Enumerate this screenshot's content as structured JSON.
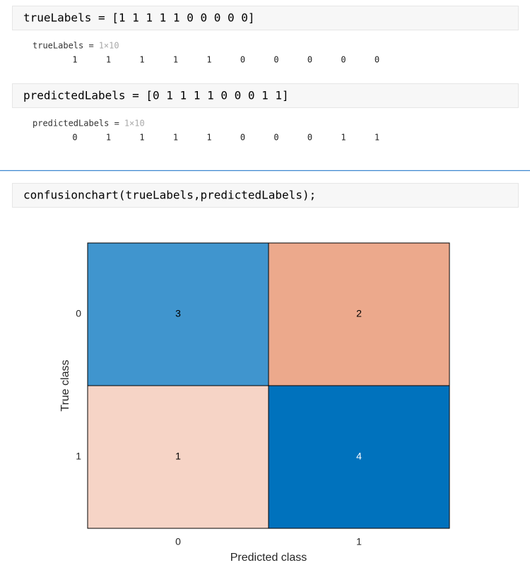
{
  "cells": [
    {
      "code": "trueLabels = [1 1 1 1 1 0 0 0 0 0]",
      "output_name": "trueLabels =",
      "output_size": "1×10",
      "output_values": [
        1,
        1,
        1,
        1,
        1,
        0,
        0,
        0,
        0,
        0
      ]
    },
    {
      "code": "predictedLabels = [0 1 1 1 1 0 0 0 1 1]",
      "output_name": "predictedLabels =",
      "output_size": "1×10",
      "output_values": [
        0,
        1,
        1,
        1,
        1,
        0,
        0,
        0,
        1,
        1
      ]
    },
    {
      "code": "confusionchart(trueLabels,predictedLabels);"
    }
  ],
  "chart_data": {
    "type": "confusion",
    "x_label": "Predicted class",
    "y_label": "True class",
    "categories": [
      "0",
      "1"
    ],
    "values": [
      [
        3,
        2
      ],
      [
        1,
        4
      ]
    ],
    "diagonal_color": "#0072bd",
    "offdiagonal_color": "#d95319"
  }
}
